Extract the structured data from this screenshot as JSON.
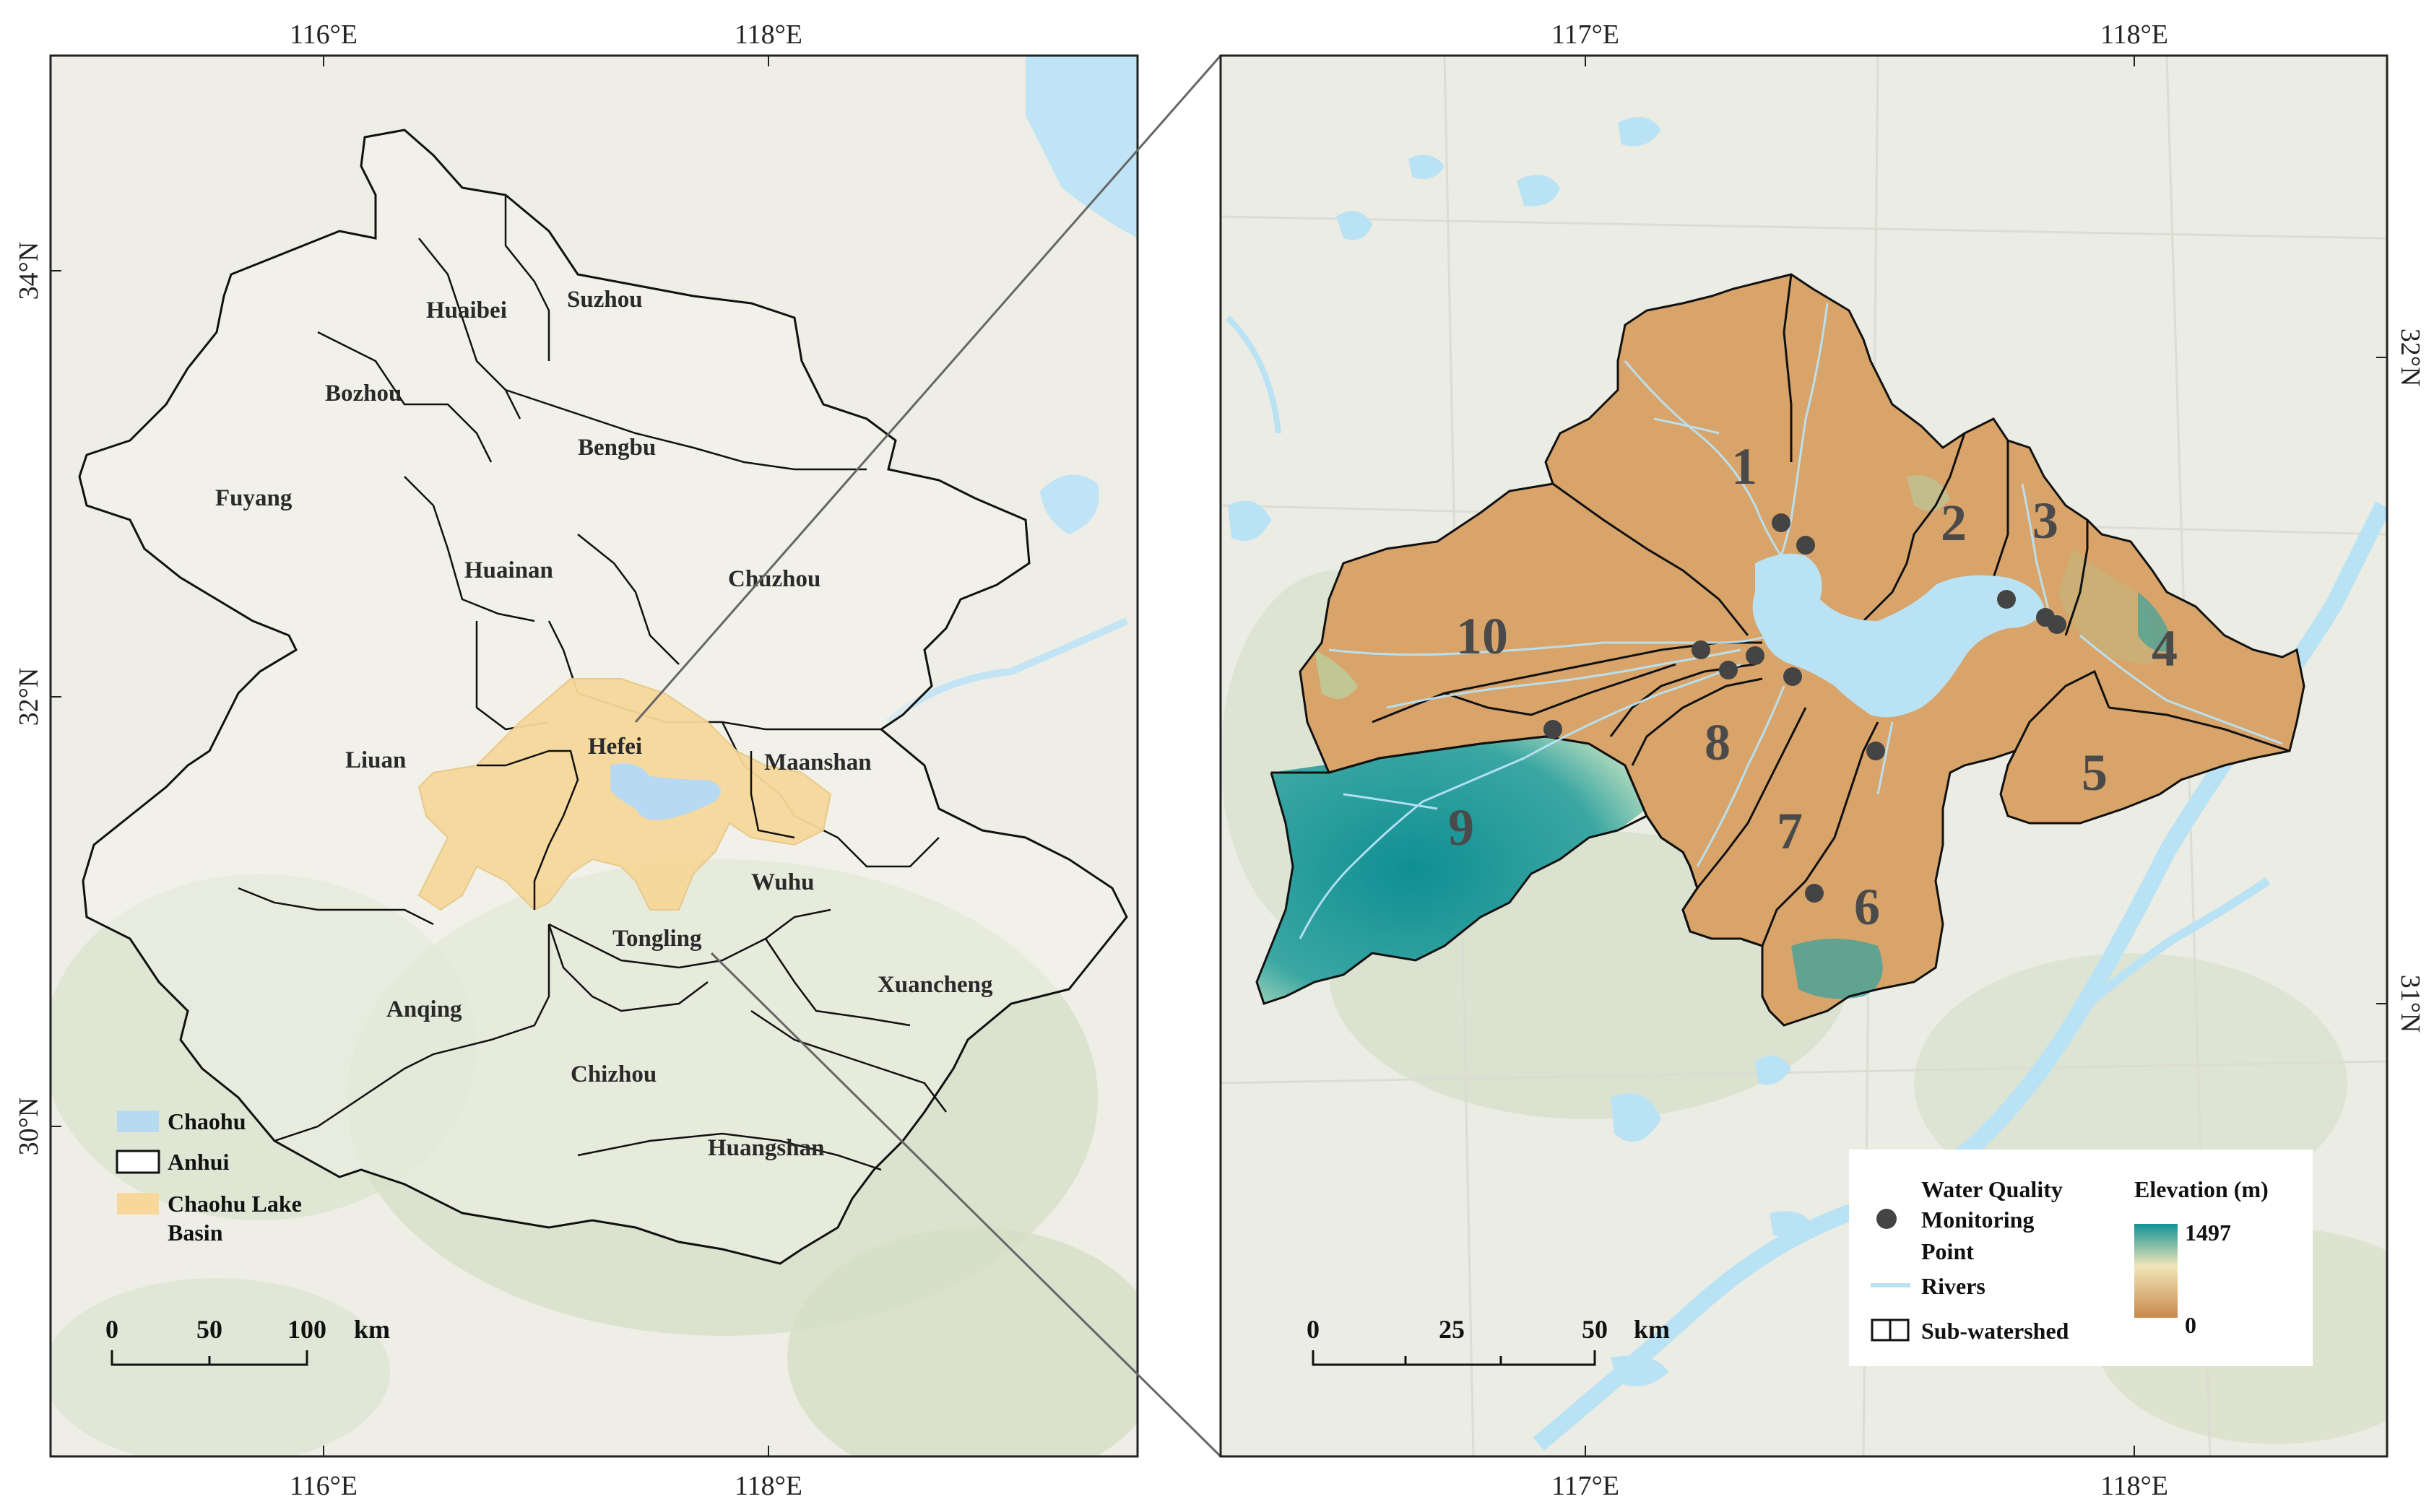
{
  "left_map": {
    "top_ticks": [
      "116°E",
      "118°E"
    ],
    "bottom_ticks": [
      "116°E",
      "118°E"
    ],
    "left_ticks": [
      "34°N",
      "32°N",
      "30°N"
    ],
    "cities": [
      {
        "name": "Huaibei"
      },
      {
        "name": "Suzhou"
      },
      {
        "name": "Bozhou"
      },
      {
        "name": "Bengbu"
      },
      {
        "name": "Fuyang"
      },
      {
        "name": "Huainan"
      },
      {
        "name": "Chuzhou"
      },
      {
        "name": "Hefei"
      },
      {
        "name": "Liuan"
      },
      {
        "name": "Maanshan"
      },
      {
        "name": "Wuhu"
      },
      {
        "name": "Tongling"
      },
      {
        "name": "Anqing"
      },
      {
        "name": "Xuancheng"
      },
      {
        "name": "Chizhou"
      },
      {
        "name": "Huangshan"
      }
    ],
    "legend": [
      {
        "label": "Chaohu",
        "color": "#b7d9f2"
      },
      {
        "label": "Anhui",
        "color": "#ffffff"
      },
      {
        "label_lines": [
          "Chaohu Lake",
          "Basin"
        ],
        "color": "#f7d89a"
      }
    ],
    "scalebar": {
      "labels": [
        "0",
        "50",
        "100"
      ],
      "unit": "km"
    }
  },
  "right_map": {
    "top_ticks": [
      "117°E",
      "118°E"
    ],
    "bottom_ticks": [
      "117°E",
      "118°E"
    ],
    "right_ticks": [
      "32°N",
      "31°N"
    ],
    "subwatersheds": [
      "1",
      "2",
      "3",
      "4",
      "5",
      "6",
      "7",
      "8",
      "9",
      "10"
    ],
    "legend": {
      "point_label_lines": [
        "Water Quality",
        "Monitoring",
        "Point"
      ],
      "rivers_label": "Rivers",
      "subwatershed_label": "Sub-watershed",
      "elevation_title": "Elevation (m)",
      "elevation_max": "1497",
      "elevation_min": "0",
      "ramp_colors": [
        "#c8894c",
        "#f2e6b8",
        "#119296"
      ]
    },
    "scalebar": {
      "labels": [
        "0",
        "25",
        "50"
      ],
      "unit": "km"
    }
  },
  "colors": {
    "basemap": "#eeeee6",
    "lake": "#b9e3f5",
    "basin": "#f7d89a",
    "watershed": "#d8a46a",
    "mountain": "#18979a",
    "border": "#1a1a1a"
  }
}
